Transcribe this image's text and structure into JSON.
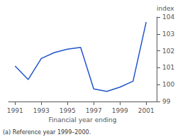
{
  "chart_data": {
    "type": "line",
    "x": [
      1991,
      1992,
      1993,
      1994,
      1995,
      1996,
      1997,
      1998,
      1999,
      2000,
      2001
    ],
    "values": [
      101.1,
      100.3,
      101.55,
      101.9,
      102.1,
      102.2,
      99.75,
      99.6,
      99.85,
      100.2,
      103.7
    ],
    "color": "#2255cc",
    "xlabel": "Financial year ending",
    "ylabel": "index",
    "xlim": [
      1990.5,
      2001.8
    ],
    "ylim": [
      99,
      104
    ],
    "xticks": [
      1991,
      1993,
      1995,
      1997,
      1999,
      2001
    ],
    "yticks": [
      99,
      100,
      101,
      102,
      103,
      104
    ],
    "annotations": [
      "(a) Reference year 1999–2000."
    ],
    "grid": false
  }
}
